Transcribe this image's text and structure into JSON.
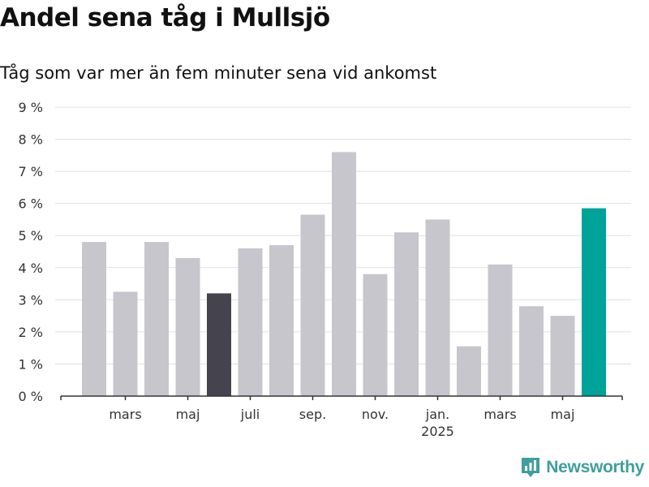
{
  "title": "Andel sena tåg i Mullsjö",
  "subtitle": "Tåg som var mer än fem minuter sena vid ankomst",
  "brand": {
    "name": "Newsworthy",
    "icon": "newsworthy-logo-icon"
  },
  "colors": {
    "bar_default": "#c7c6cc",
    "bar_highlight_dark": "#44434e",
    "bar_highlight_latest": "#00a39a",
    "grid": "#e1e1e1",
    "axis": "#333333",
    "brand": "#3f9f9c"
  },
  "chart_data": {
    "type": "bar",
    "title": "Andel sena tåg i Mullsjö",
    "subtitle": "Tåg som var mer än fem minuter sena vid ankomst",
    "months": [
      "2024-02",
      "2024-03",
      "2024-04",
      "2024-05",
      "2024-06",
      "2024-07",
      "2024-08",
      "2024-09",
      "2024-10",
      "2024-11",
      "2024-12",
      "2025-01",
      "2025-02",
      "2025-03",
      "2025-04",
      "2025-05",
      "2025-06"
    ],
    "values": [
      4.8,
      3.25,
      4.8,
      4.3,
      3.2,
      4.6,
      4.7,
      5.65,
      7.6,
      3.8,
      5.1,
      5.5,
      1.55,
      4.1,
      2.8,
      2.5,
      5.85
    ],
    "highlights": {
      "2024-06": "dark",
      "2025-06": "latest"
    },
    "ylim": [
      0,
      9
    ],
    "y_ticks": [
      0,
      1,
      2,
      3,
      4,
      5,
      6,
      7,
      8,
      9
    ],
    "y_tick_suffix": " %",
    "x_tick_labels": [
      {
        "month": "2024-03",
        "label": "mars"
      },
      {
        "month": "2024-05",
        "label": "maj"
      },
      {
        "month": "2024-07",
        "label": "juli"
      },
      {
        "month": "2024-09",
        "label": "sep."
      },
      {
        "month": "2024-11",
        "label": "nov."
      },
      {
        "month": "2025-01",
        "label": "jan.",
        "sublabel": "2025"
      },
      {
        "month": "2025-03",
        "label": "mars"
      },
      {
        "month": "2025-05",
        "label": "maj"
      }
    ],
    "grid": true,
    "legend": "none"
  }
}
